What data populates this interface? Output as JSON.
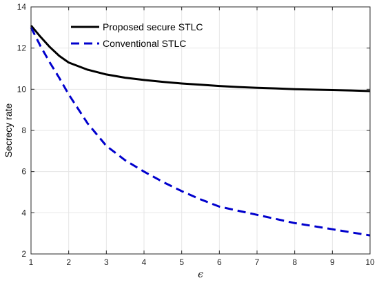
{
  "chart_data": {
    "type": "line",
    "xlabel": "ϵ",
    "ylabel": "Secrecy rate",
    "xlim": [
      1,
      10
    ],
    "ylim": [
      2,
      14
    ],
    "xticks": [
      1,
      2,
      3,
      4,
      5,
      6,
      7,
      8,
      9,
      10
    ],
    "yticks": [
      2,
      4,
      6,
      8,
      10,
      12,
      14
    ],
    "grid": true,
    "legend_position": "top-left",
    "series": [
      {
        "name": "Proposed secure STLC",
        "color": "#000000",
        "style": "solid",
        "x": [
          1,
          1.25,
          1.5,
          1.75,
          2,
          2.5,
          3,
          3.5,
          4,
          4.5,
          5,
          5.5,
          6,
          6.5,
          7,
          7.5,
          8,
          8.5,
          9,
          9.5,
          10
        ],
        "y": [
          13.1,
          12.55,
          12.05,
          11.62,
          11.3,
          10.95,
          10.72,
          10.56,
          10.45,
          10.36,
          10.28,
          10.22,
          10.16,
          10.11,
          10.07,
          10.04,
          10.0,
          9.98,
          9.96,
          9.94,
          9.91
        ]
      },
      {
        "name": "Conventional STLC",
        "color": "#0000cd",
        "style": "dashed",
        "x": [
          1,
          1.25,
          1.5,
          1.75,
          2,
          2.5,
          3,
          3.5,
          4,
          4.5,
          5,
          5.5,
          6,
          6.5,
          7,
          7.5,
          8,
          8.5,
          9,
          9.5,
          10
        ],
        "y": [
          13.0,
          12.1,
          11.3,
          10.55,
          9.75,
          8.35,
          7.25,
          6.55,
          6.0,
          5.5,
          5.05,
          4.65,
          4.3,
          4.1,
          3.9,
          3.7,
          3.5,
          3.35,
          3.2,
          3.05,
          2.9
        ]
      }
    ]
  }
}
